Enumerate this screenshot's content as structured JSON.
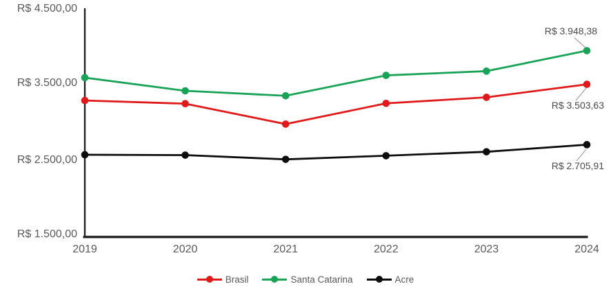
{
  "chart_data": {
    "type": "line",
    "x": [
      2019,
      2020,
      2021,
      2022,
      2023,
      2024
    ],
    "series": [
      {
        "name": "Brasil",
        "color": "#e01a1a",
        "values": [
          3290,
          3248,
          2978,
          3252,
          3332,
          3503.63
        ]
      },
      {
        "name": "Santa Catarina",
        "color": "#19a357",
        "values": [
          3592,
          3418,
          3352,
          3622,
          3678,
          3948.38
        ]
      },
      {
        "name": "Acre",
        "color": "#0d0d0d",
        "values": [
          2573,
          2568,
          2512,
          2560,
          2612,
          2705.91
        ]
      }
    ],
    "ylim": [
      1500,
      4500
    ],
    "ytick_step": 1000,
    "ytick_labels": [
      "R$ 1.500,00",
      "R$ 2.500,00",
      "R$ 3.500,00",
      "R$ 4.500,00"
    ],
    "end_labels": [
      {
        "series": "Santa Catarina",
        "text": "R$ 3.948,38"
      },
      {
        "series": "Brasil",
        "text": "R$ 3.503,63"
      },
      {
        "series": "Acre",
        "text": "R$ 2.705,91"
      }
    ],
    "grid": false,
    "legend_position": "bottom",
    "leader_line_color": "#a6a6a6",
    "axis_color": "#262626",
    "axis_text_color": "#595959"
  }
}
